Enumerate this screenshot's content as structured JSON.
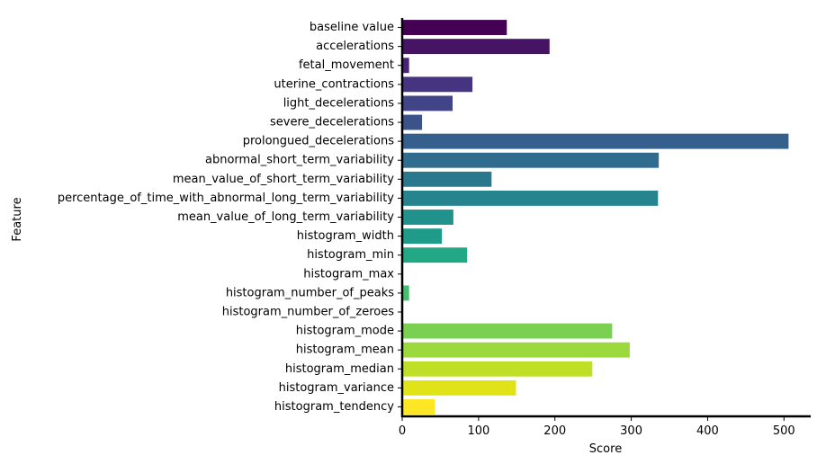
{
  "chart_data": {
    "type": "bar",
    "orientation": "horizontal",
    "title": "",
    "xlabel": "Score",
    "ylabel": "Feature",
    "xlim": [
      0,
      535
    ],
    "xticks": [
      0,
      100,
      200,
      300,
      400,
      500
    ],
    "xtick_labels": [
      "0",
      "100",
      "200",
      "300",
      "400",
      "500"
    ],
    "grid": false,
    "legend": "none",
    "colormap": "viridis",
    "categories": [
      "baseline value",
      "accelerations",
      "fetal_movement",
      "uterine_contractions",
      "light_decelerations",
      "severe_decelerations",
      "prolongued_decelerations",
      "abnormal_short_term_variability",
      "mean_value_of_short_term_variability",
      "percentage_of_time_with_abnormal_long_term_variability",
      "mean_value_of_long_term_variability",
      "histogram_width",
      "histogram_min",
      "histogram_max",
      "histogram_number_of_peaks",
      "histogram_number_of_zeroes",
      "histogram_mode",
      "histogram_mean",
      "histogram_median",
      "histogram_variance",
      "histogram_tendency"
    ],
    "values": [
      137,
      193,
      9,
      92,
      66,
      26,
      506,
      336,
      117,
      335,
      67,
      52,
      85,
      1,
      9,
      1,
      275,
      298,
      249,
      149,
      43
    ],
    "colors": [
      "#440154",
      "#471365",
      "#482475",
      "#463480",
      "#414487",
      "#3b528b",
      "#355f8d",
      "#2f6c8e",
      "#2a788e",
      "#25848e",
      "#21918c",
      "#1e9c89",
      "#22a884",
      "#2fb47c",
      "#44bf70",
      "#5ec962",
      "#7ad151",
      "#9bd93c",
      "#bddf26",
      "#dfe318",
      "#fde725"
    ]
  }
}
